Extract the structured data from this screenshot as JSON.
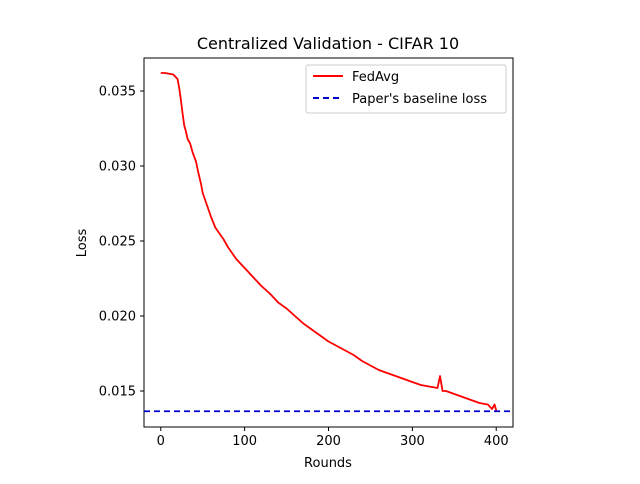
{
  "chart_data": {
    "type": "line",
    "title": "Centralized Validation - CIFAR 10",
    "xlabel": "Rounds",
    "ylabel": "Loss",
    "xlim": [
      -20,
      420
    ],
    "ylim": [
      0.0126,
      0.0372
    ],
    "xticks": [
      0,
      100,
      200,
      300,
      400
    ],
    "yticks": [
      0.015,
      0.02,
      0.025,
      0.03,
      0.035
    ],
    "xtick_labels": [
      "0",
      "100",
      "200",
      "300",
      "400"
    ],
    "ytick_labels": [
      "0.015",
      "0.020",
      "0.025",
      "0.030",
      "0.035"
    ],
    "grid": false,
    "legend_position": "top-right",
    "series": [
      {
        "name": "FedAvg",
        "color": "#ff0000",
        "style": "solid",
        "x": [
          0,
          5,
          10,
          15,
          20,
          22,
          24,
          26,
          28,
          30,
          32,
          35,
          38,
          40,
          42,
          45,
          48,
          50,
          55,
          60,
          65,
          70,
          75,
          80,
          85,
          90,
          95,
          100,
          110,
          120,
          130,
          140,
          150,
          160,
          170,
          180,
          190,
          200,
          210,
          220,
          230,
          240,
          250,
          260,
          270,
          280,
          290,
          300,
          310,
          320,
          330,
          333,
          336,
          340,
          350,
          360,
          370,
          380,
          390,
          395,
          398,
          400
        ],
        "y": [
          0.0362,
          0.0362,
          0.03615,
          0.0361,
          0.0358,
          0.0352,
          0.0344,
          0.0335,
          0.0327,
          0.0323,
          0.0318,
          0.0315,
          0.0309,
          0.0306,
          0.0303,
          0.0295,
          0.0288,
          0.0282,
          0.0274,
          0.0266,
          0.0259,
          0.0255,
          0.0251,
          0.0246,
          0.0242,
          0.0238,
          0.0235,
          0.0232,
          0.0226,
          0.022,
          0.0215,
          0.0209,
          0.0205,
          0.02,
          0.0195,
          0.0191,
          0.0187,
          0.0183,
          0.018,
          0.0177,
          0.0174,
          0.017,
          0.0167,
          0.0164,
          0.0162,
          0.016,
          0.0158,
          0.0156,
          0.0154,
          0.0153,
          0.0152,
          0.016,
          0.015,
          0.015,
          0.0148,
          0.0146,
          0.0144,
          0.0142,
          0.0141,
          0.0138,
          0.0141,
          0.0137
        ]
      },
      {
        "name": "Paper's baseline loss",
        "color": "#0000cc",
        "style": "dashed",
        "y_constant": 0.01365
      }
    ]
  }
}
